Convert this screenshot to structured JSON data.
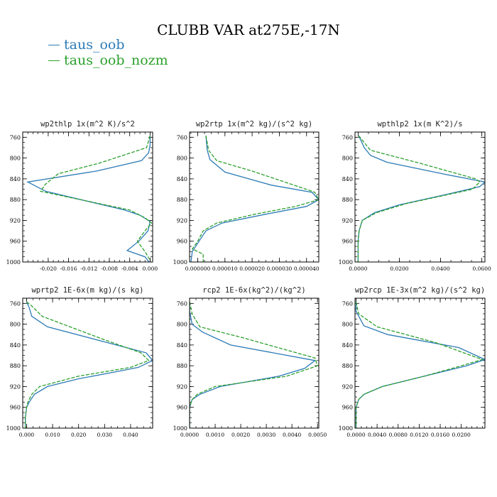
{
  "figure": {
    "title": "CLUBB VAR at275E,-17N",
    "legend": [
      {
        "label": "taus_oob",
        "color": "#2c7bb6"
      },
      {
        "label": "taus_oob_nozm",
        "color": "#2ca02c"
      }
    ]
  },
  "chart_data": [
    {
      "type": "line",
      "title": "wp2thlp   1x(m^2 K)/s^2",
      "xlim": [
        -0.025,
        0.0005
      ],
      "ylim": [
        1000,
        750
      ],
      "xticks": [
        -0.02,
        -0.016,
        -0.012,
        -0.008,
        -0.004,
        0.0
      ],
      "xtick_labels": [
        "-0.020",
        "-0.016",
        "-0.012",
        "-0.008",
        "-0.004",
        "0.000"
      ],
      "yticks": [
        760,
        800,
        840,
        880,
        920,
        960,
        1000
      ],
      "ytick_labels": [
        "760",
        "800",
        "840",
        "880",
        "920",
        "960",
        "1000"
      ],
      "series": [
        {
          "name": "taus_oob",
          "color": "#2c7bb6",
          "points": [
            [
              0.0,
              757
            ],
            [
              0.0,
              775
            ],
            [
              -0.0003,
              790
            ],
            [
              -0.0017,
              805
            ],
            [
              -0.0105,
              825
            ],
            [
              -0.024,
              846
            ],
            [
              -0.0205,
              864
            ],
            [
              -0.005,
              900
            ],
            [
              -0.002,
              910
            ],
            [
              0.0,
              922
            ],
            [
              -0.0004,
              940
            ],
            [
              -0.0022,
              960
            ],
            [
              -0.0045,
              978
            ],
            [
              -0.001,
              990
            ],
            [
              -0.0002,
              1000
            ]
          ]
        },
        {
          "name": "taus_oob_nozm",
          "color": "#2ca02c",
          "points": [
            [
              0.0,
              757
            ],
            [
              -0.0007,
              780
            ],
            [
              -0.01,
              810
            ],
            [
              -0.018,
              830
            ],
            [
              -0.0205,
              850
            ],
            [
              -0.0215,
              864
            ],
            [
              -0.004,
              900
            ],
            [
              -0.001,
              915
            ],
            [
              0.0003,
              925
            ],
            [
              -0.001,
              940
            ],
            [
              -0.0025,
              960
            ],
            [
              -0.001,
              980
            ],
            [
              -0.0001,
              995
            ]
          ]
        }
      ]
    },
    {
      "type": "line",
      "title": "wp2rtp   1x(m^2 kg)/(s^2 kg)",
      "xlim": [
        -3e-06,
        4.45e-05
      ],
      "ylim": [
        1000,
        750
      ],
      "xticks": [
        0.0,
        1e-05,
        2e-05,
        3e-05,
        4e-05
      ],
      "xtick_labels": [
        "0.000000",
        "0.000010",
        "0.000020",
        "0.000030",
        "0.000040"
      ],
      "yticks": [
        760,
        800,
        840,
        880,
        920,
        960,
        1000
      ],
      "ytick_labels": [
        "760",
        "800",
        "840",
        "880",
        "920",
        "960",
        "1000"
      ],
      "series": [
        {
          "name": "taus_oob",
          "color": "#2c7bb6",
          "points": [
            [
              3e-06,
              757
            ],
            [
              3.5e-06,
              785
            ],
            [
              4.5e-06,
              803
            ],
            [
              1e-05,
              827
            ],
            [
              2.7e-05,
              852
            ],
            [
              4.2e-05,
              866
            ],
            [
              4.45e-05,
              880
            ],
            [
              4e-05,
              893
            ],
            [
              2.5e-05,
              908
            ],
            [
              9e-06,
              925
            ],
            [
              3e-06,
              940
            ],
            [
              5e-07,
              960
            ],
            [
              -2e-06,
              980
            ],
            [
              -2.5e-06,
              1000
            ]
          ]
        },
        {
          "name": "taus_oob_nozm",
          "color": "#2ca02c",
          "points": [
            [
              3e-06,
              757
            ],
            [
              4e-06,
              785
            ],
            [
              7e-06,
              805
            ],
            [
              2e-05,
              825
            ],
            [
              4.1e-05,
              862
            ],
            [
              4.3e-05,
              866
            ],
            [
              4.45e-05,
              880
            ],
            [
              3.6e-05,
              893
            ],
            [
              2.1e-05,
              908
            ],
            [
              7e-06,
              925
            ],
            [
              2e-06,
              940
            ],
            [
              0.0,
              960
            ],
            [
              -2e-06,
              975
            ],
            [
              2e-06,
              985
            ],
            [
              2e-06,
              1000
            ]
          ]
        }
      ]
    },
    {
      "type": "line",
      "title": "wpthlp2   1x(m K^2)/s",
      "xlim": [
        -0.0015,
        0.0615
      ],
      "ylim": [
        1000,
        750
      ],
      "xticks": [
        0.0,
        0.02,
        0.04,
        0.06
      ],
      "xtick_labels": [
        "0.0000",
        "0.0200",
        "0.0400",
        "0.0600"
      ],
      "yticks": [
        760,
        800,
        840,
        880,
        920,
        960,
        1000
      ],
      "ytick_labels": [
        "760",
        "800",
        "840",
        "880",
        "920",
        "960",
        "1000"
      ],
      "series": [
        {
          "name": "taus_oob",
          "color": "#2c7bb6",
          "points": [
            [
              0.0003,
              757
            ],
            [
              0.003,
              780
            ],
            [
              0.006,
              795
            ],
            [
              0.014,
              808
            ],
            [
              0.043,
              832
            ],
            [
              0.0615,
              846
            ],
            [
              0.059,
              855
            ],
            [
              0.043,
              870
            ],
            [
              0.02,
              890
            ],
            [
              0.008,
              905
            ],
            [
              0.002,
              920
            ],
            [
              0.0005,
              940
            ],
            [
              0.0,
              960
            ],
            [
              0.0,
              1000
            ]
          ]
        },
        {
          "name": "taus_oob_nozm",
          "color": "#2ca02c",
          "points": [
            [
              0.0003,
              757
            ],
            [
              0.006,
              785
            ],
            [
              0.03,
              810
            ],
            [
              0.057,
              840
            ],
            [
              0.059,
              846
            ],
            [
              0.0555,
              860
            ],
            [
              0.044,
              870
            ],
            [
              0.023,
              888
            ],
            [
              0.009,
              905
            ],
            [
              0.002,
              920
            ],
            [
              0.0005,
              940
            ],
            [
              0.0,
              960
            ],
            [
              0.0,
              1000
            ]
          ]
        }
      ]
    },
    {
      "type": "line",
      "title": "wprtp2   1E-6x(m kg)/(s kg)",
      "xlim": [
        -0.0015,
        0.0485
      ],
      "ylim": [
        1000,
        750
      ],
      "xticks": [
        0.0,
        0.01,
        0.02,
        0.03,
        0.04
      ],
      "xtick_labels": [
        "0.000",
        "0.010",
        "0.020",
        "0.030",
        "0.040"
      ],
      "yticks": [
        760,
        800,
        840,
        880,
        920,
        960,
        1000
      ],
      "ytick_labels": [
        "760",
        "800",
        "840",
        "880",
        "920",
        "960",
        "1000"
      ],
      "series": [
        {
          "name": "taus_oob",
          "color": "#2c7bb6",
          "points": [
            [
              0.0,
              757
            ],
            [
              0.001,
              768
            ],
            [
              0.002,
              785
            ],
            [
              0.008,
              805
            ],
            [
              0.046,
              855
            ],
            [
              0.0485,
              870
            ],
            [
              0.043,
              883
            ],
            [
              0.036,
              890
            ],
            [
              0.02,
              905
            ],
            [
              0.008,
              920
            ],
            [
              0.003,
              935
            ],
            [
              0.001,
              950
            ],
            [
              0.0,
              960
            ],
            [
              -0.0005,
              980
            ],
            [
              -0.0005,
              1000
            ]
          ]
        },
        {
          "name": "taus_oob_nozm",
          "color": "#2ca02c",
          "points": [
            [
              0.0,
              757
            ],
            [
              0.002,
              765
            ],
            [
              0.006,
              785
            ],
            [
              0.03,
              830
            ],
            [
              0.044,
              855
            ],
            [
              0.047,
              870
            ],
            [
              0.04,
              883
            ],
            [
              0.02,
              900
            ],
            [
              0.005,
              920
            ],
            [
              0.002,
              935
            ],
            [
              0.0005,
              950
            ],
            [
              0.0,
              960
            ],
            [
              -0.0005,
              980
            ],
            [
              -0.0005,
              1000
            ]
          ]
        }
      ]
    },
    {
      "type": "line",
      "title": "rcp2   1E-6x(kg^2)/(kg^2)",
      "xlim": [
        0.0,
        0.00505
      ],
      "ylim": [
        1000,
        750
      ],
      "xticks": [
        0.0,
        0.001,
        0.002,
        0.003,
        0.004,
        0.005
      ],
      "xtick_labels": [
        "0.0000",
        "0.0010",
        "0.0020",
        "0.0030",
        "0.0040",
        "0.0050"
      ],
      "yticks": [
        760,
        800,
        840,
        880,
        920,
        960,
        1000
      ],
      "ytick_labels": [
        "760",
        "800",
        "840",
        "880",
        "920",
        "960",
        "1000"
      ],
      "series": [
        {
          "name": "taus_oob",
          "color": "#2c7bb6",
          "points": [
            [
              0.0,
              757
            ],
            [
              0.0,
              775
            ],
            [
              0.0001,
              800
            ],
            [
              0.0005,
              815
            ],
            [
              0.0016,
              840
            ],
            [
              0.0049,
              870
            ],
            [
              0.0045,
              885
            ],
            [
              0.0035,
              900
            ],
            [
              0.0012,
              920
            ],
            [
              0.0004,
              935
            ],
            [
              0.0001,
              945
            ],
            [
              0.0,
              960
            ],
            [
              0.0,
              1000
            ]
          ]
        },
        {
          "name": "taus_oob_nozm",
          "color": "#2ca02c",
          "points": [
            [
              0.0,
              757
            ],
            [
              0.0001,
              780
            ],
            [
              0.0004,
              805
            ],
            [
              0.002,
              825
            ],
            [
              0.0049,
              865
            ],
            [
              0.005,
              880
            ],
            [
              0.0038,
              900
            ],
            [
              0.001,
              920
            ],
            [
              0.0003,
              935
            ],
            [
              0.0001,
              945
            ],
            [
              0.0,
              960
            ],
            [
              0.0,
              1000
            ]
          ]
        }
      ]
    },
    {
      "type": "line",
      "title": "wp2rcp   1E-3x(m^2 kg)/(s^2 kg)",
      "xlim": [
        -0.0002,
        0.0245
      ],
      "ylim": [
        1000,
        750
      ],
      "xticks": [
        0.0,
        0.004,
        0.008,
        0.012,
        0.016,
        0.02
      ],
      "xtick_labels": [
        "0.0000",
        "0.0040",
        "0.0080",
        "0.0120",
        "0.0160",
        "0.0200"
      ],
      "yticks": [
        760,
        800,
        840,
        880,
        920,
        960,
        1000
      ],
      "ytick_labels": [
        "760",
        "800",
        "840",
        "880",
        "920",
        "960",
        "1000"
      ],
      "series": [
        {
          "name": "taus_oob",
          "color": "#2c7bb6",
          "points": [
            [
              0.0,
              757
            ],
            [
              0.0,
              775
            ],
            [
              0.0008,
              790
            ],
            [
              0.0015,
              803
            ],
            [
              0.006,
              820
            ],
            [
              0.0195,
              845
            ],
            [
              0.0245,
              868
            ],
            [
              0.021,
              880
            ],
            [
              0.013,
              900
            ],
            [
              0.005,
              920
            ],
            [
              0.0015,
              935
            ],
            [
              0.0005,
              945
            ],
            [
              0.0,
              960
            ],
            [
              0.0,
              1000
            ]
          ]
        },
        {
          "name": "taus_oob_nozm",
          "color": "#2ca02c",
          "points": [
            [
              0.0,
              757
            ],
            [
              0.0005,
              780
            ],
            [
              0.004,
              805
            ],
            [
              0.015,
              835
            ],
            [
              0.024,
              868
            ],
            [
              0.02,
              880
            ],
            [
              0.013,
              900
            ],
            [
              0.005,
              920
            ],
            [
              0.0015,
              935
            ],
            [
              0.0005,
              945
            ],
            [
              0.0,
              960
            ],
            [
              0.0,
              1000
            ]
          ]
        }
      ]
    }
  ]
}
